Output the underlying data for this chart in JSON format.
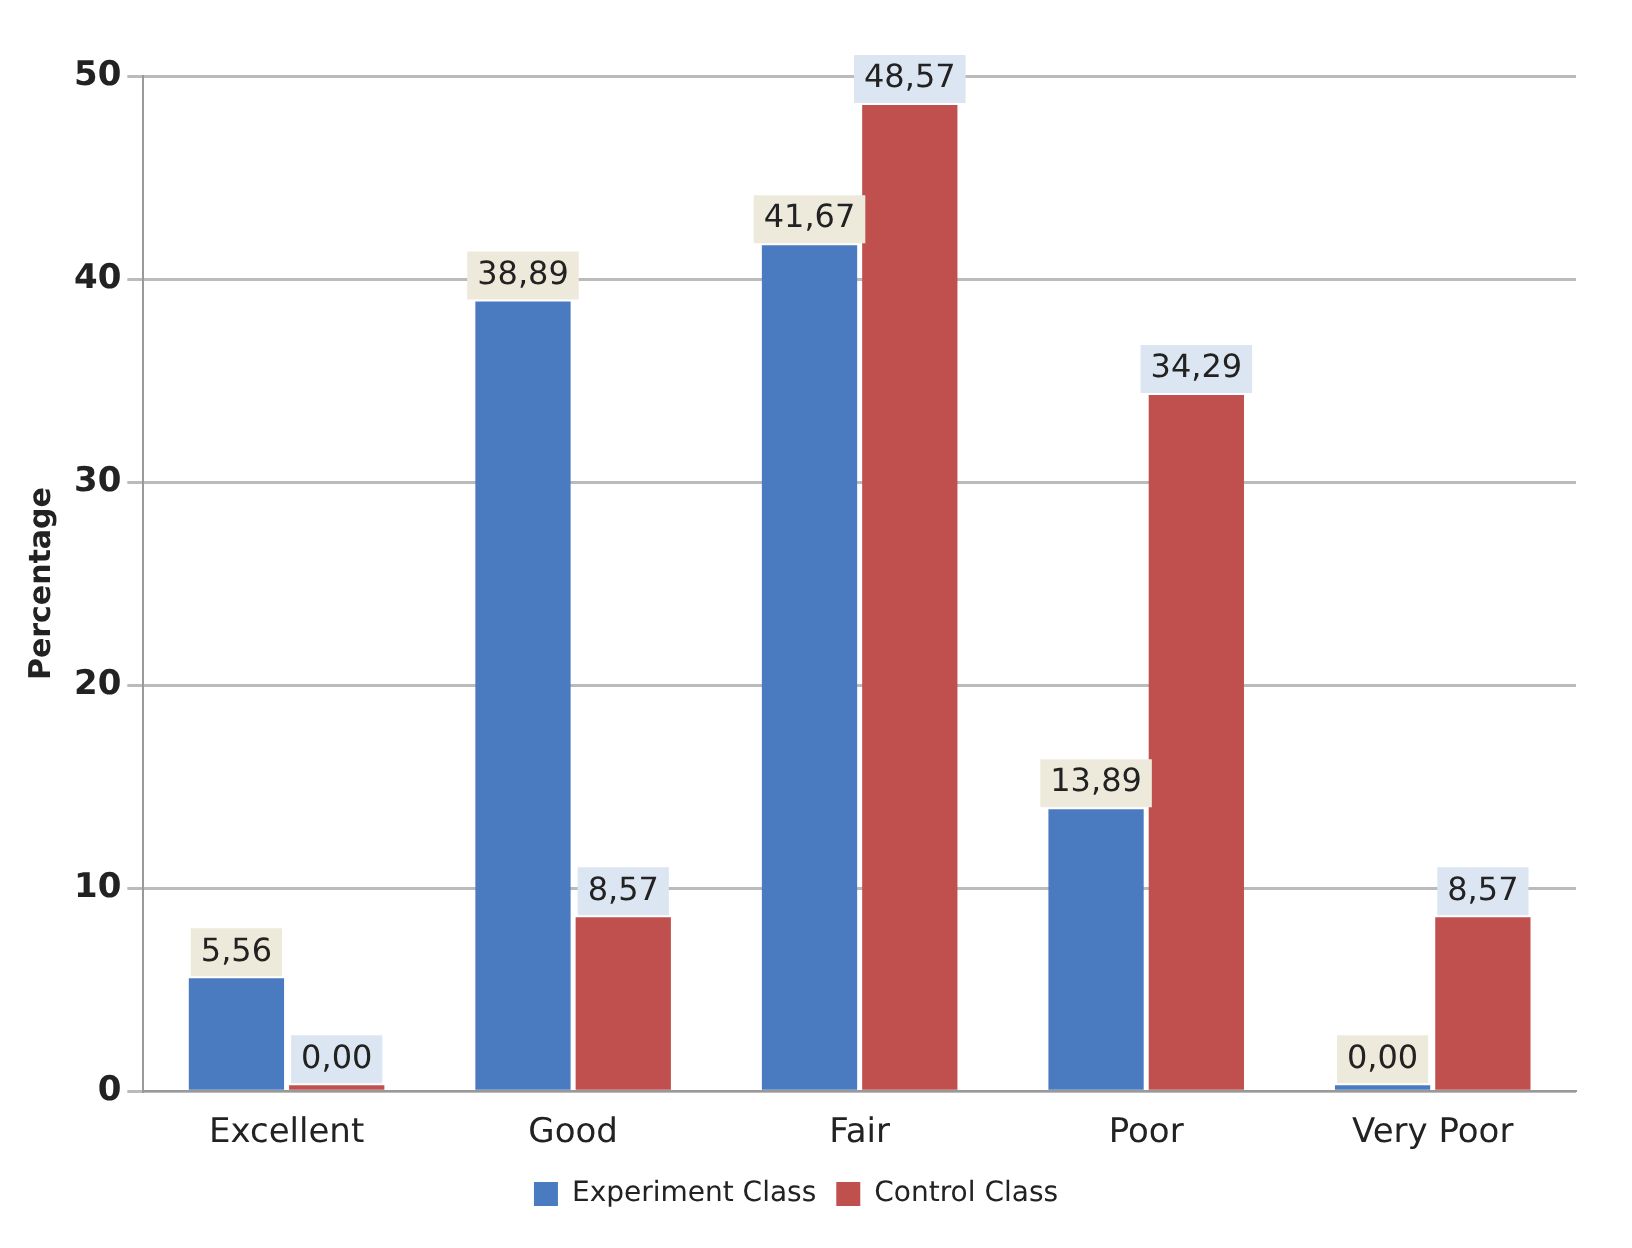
{
  "chart_data": {
    "type": "bar",
    "ylabel": "Percentage",
    "categories": [
      "Excellent",
      "Good",
      "Fair",
      "Poor",
      "Very Poor"
    ],
    "series": [
      {
        "name": "Experiment Class",
        "color": "#4a7bc0",
        "values": [
          5.56,
          38.89,
          41.67,
          13.89,
          0.0
        ],
        "value_labels": [
          "5,56",
          "38,89",
          "41,67",
          "13,89",
          "0,00"
        ]
      },
      {
        "name": "Control Class",
        "color": "#c0504d",
        "values": [
          0.0,
          8.57,
          48.57,
          34.29,
          8.57
        ],
        "value_labels": [
          "0,00",
          "8,57",
          "48,57",
          "34,29",
          "8,57"
        ]
      }
    ],
    "ylim": [
      0,
      50
    ],
    "yticks": [
      0,
      10,
      20,
      30,
      40,
      50
    ],
    "grid": "y",
    "legend": "bottom"
  }
}
